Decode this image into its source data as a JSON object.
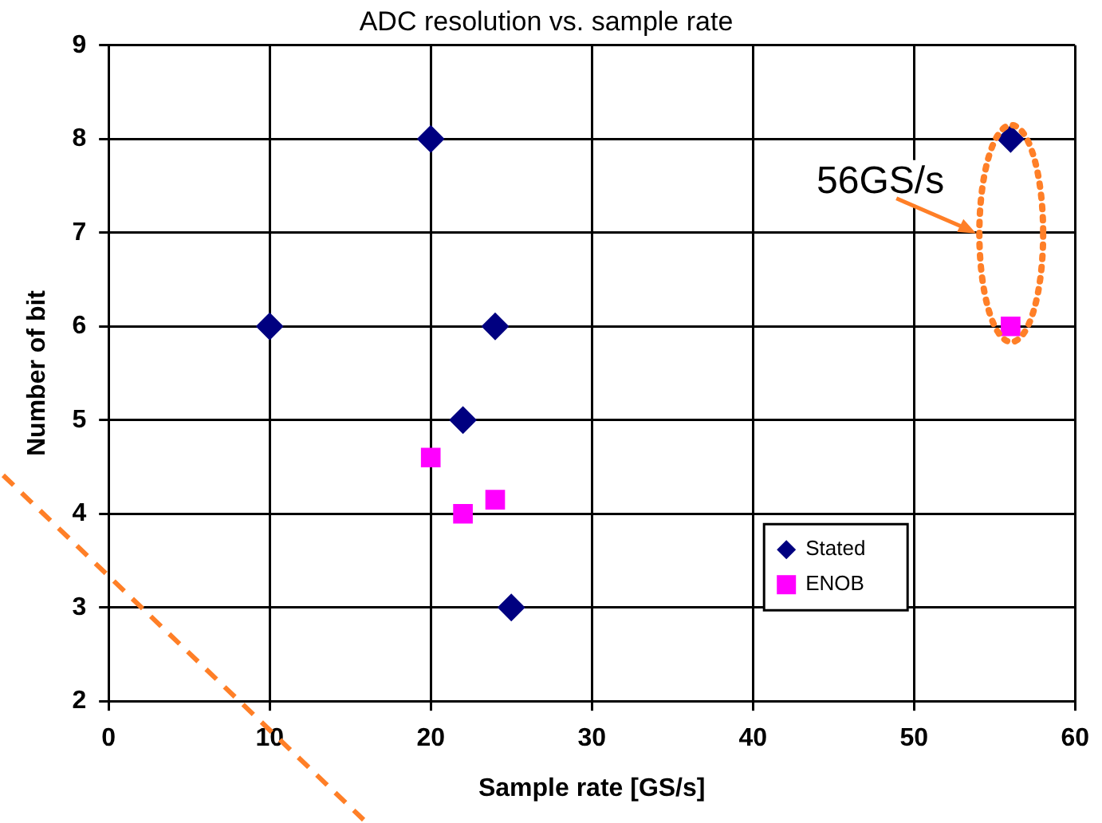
{
  "chart_data": {
    "type": "scatter",
    "title": "ADC resolution vs. sample rate",
    "xlabel": "Sample rate [GS/s]",
    "ylabel": "Number of bit",
    "series": [
      {
        "name": "Stated",
        "color": "#000080",
        "marker": "diamond",
        "x": [
          10,
          20,
          22,
          24,
          25,
          56
        ],
        "values": [
          6,
          8,
          5,
          6,
          3,
          8
        ]
      },
      {
        "name": "ENOB",
        "color": "#ff00ff",
        "marker": "square",
        "x": [
          20,
          22,
          24,
          56
        ],
        "values": [
          4.6,
          4,
          4.15,
          6
        ]
      }
    ],
    "xlim": [
      0,
      60
    ],
    "xticks": [
      0,
      10,
      20,
      30,
      40,
      50,
      60
    ],
    "ylim": [
      2,
      9
    ],
    "yticks": [
      2,
      3,
      4,
      5,
      6,
      7,
      8,
      9
    ],
    "grid": true,
    "legend": "bottom right",
    "annotations": [
      "56GS/s"
    ]
  }
}
